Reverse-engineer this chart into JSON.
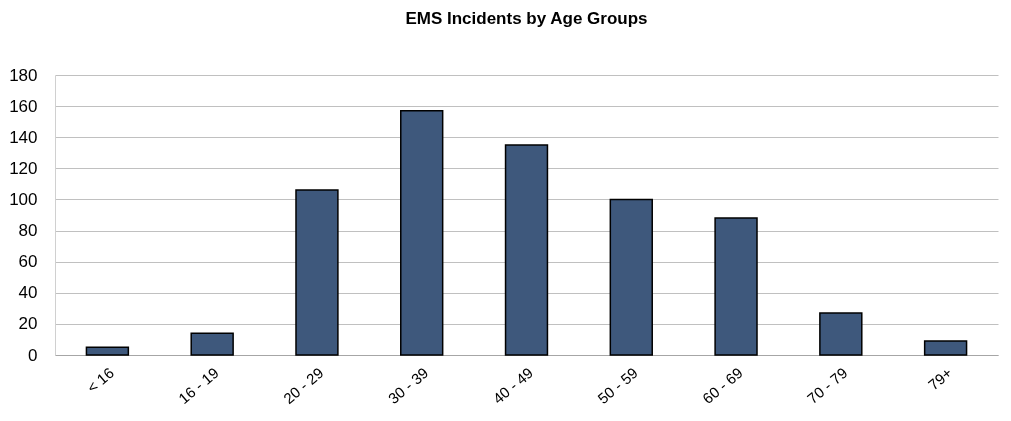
{
  "chart_data": {
    "type": "bar",
    "title": "EMS Incidents by Age Groups",
    "categories": [
      "< 16",
      "16 - 19",
      "20 - 29",
      "30 - 39",
      "40 - 49",
      "50 - 59",
      "60 - 69",
      "70 - 79",
      "79+"
    ],
    "values": [
      5,
      14,
      106,
      157,
      135,
      100,
      88,
      27,
      9
    ],
    "color": "#3e587c",
    "ylim": [
      0,
      180
    ],
    "yticks": [
      0,
      20,
      40,
      60,
      80,
      100,
      120,
      140,
      160,
      180
    ],
    "grid": "y"
  }
}
